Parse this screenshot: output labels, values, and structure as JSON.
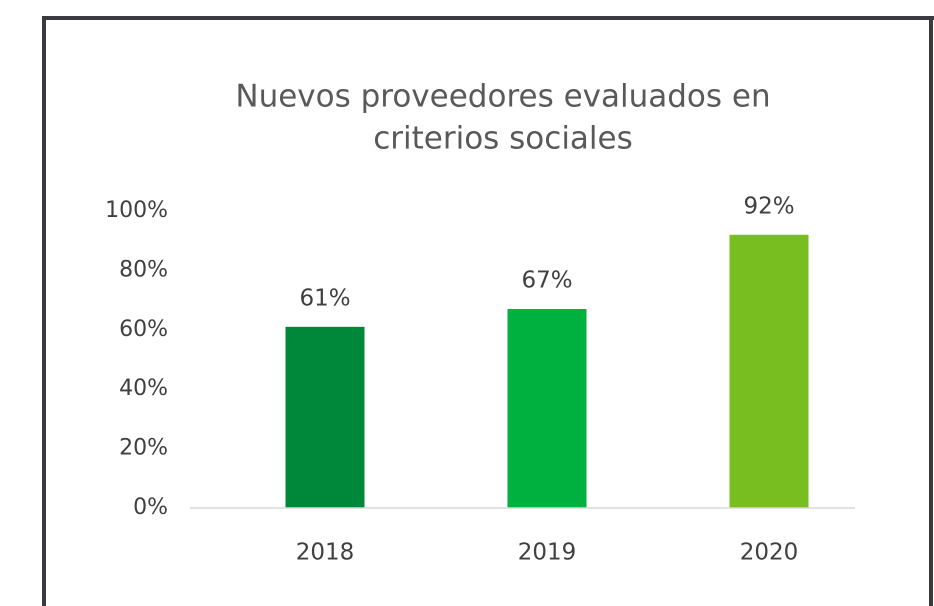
{
  "chart_data": {
    "type": "bar",
    "title": [
      "Nuevos proveedores evaluados en",
      "criterios sociales"
    ],
    "categories": [
      "2018",
      "2019",
      "2020"
    ],
    "values": [
      61,
      67,
      92
    ],
    "value_labels": [
      "61%",
      "67%",
      "92%"
    ],
    "colors": [
      "#00883a",
      "#00b140",
      "#78be20"
    ],
    "ylim": [
      0,
      100
    ],
    "yticks": [
      {
        "value": 0,
        "label": "0%"
      },
      {
        "value": 20,
        "label": "20%"
      },
      {
        "value": 40,
        "label": "40%"
      },
      {
        "value": 60,
        "label": "60%"
      },
      {
        "value": 80,
        "label": "80%"
      },
      {
        "value": 100,
        "label": "100%"
      }
    ],
    "grid": false
  }
}
